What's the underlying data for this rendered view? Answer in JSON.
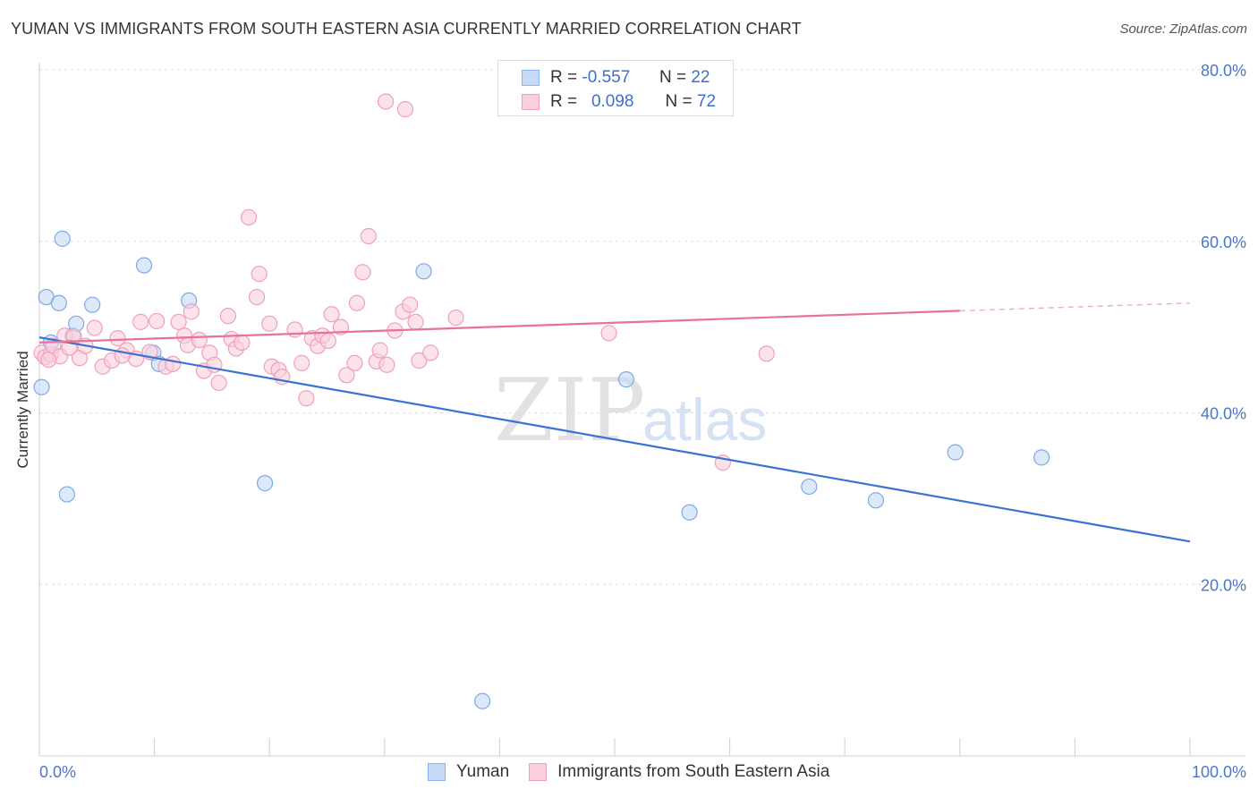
{
  "title": "YUMAN VS IMMIGRANTS FROM SOUTH EASTERN ASIA CURRENTLY MARRIED CORRELATION CHART",
  "source": "Source: ZipAtlas.com",
  "watermark": {
    "zip": "ZIP",
    "atlas": "atlas"
  },
  "legend": {
    "rows": [
      {
        "r_label": "R =",
        "r_value": "-0.557",
        "n_label": "N =",
        "n_value": "22",
        "color": "#8fb4ec",
        "fill": "#c5daf6"
      },
      {
        "r_label": "R =",
        "r_value": "0.098",
        "n_label": "N =",
        "n_value": "72",
        "color": "#f0a0b8",
        "fill": "#fad0dc"
      }
    ]
  },
  "chart_data": {
    "type": "scatter",
    "title": "YUMAN VS IMMIGRANTS FROM SOUTH EASTERN ASIA CURRENTLY MARRIED CORRELATION CHART",
    "ylabel": "Currently Married",
    "xlabel": "",
    "xlim": [
      0,
      100
    ],
    "ylim": [
      0,
      85
    ],
    "x_tick_labels": [
      "0.0%",
      "100.0%"
    ],
    "y_ticks": [
      20,
      40,
      60,
      80
    ],
    "y_tick_labels": [
      "20.0%",
      "40.0%",
      "60.0%",
      "80.0%"
    ],
    "grid": true,
    "legend_position": "top-center",
    "series": [
      {
        "name": "Yuman",
        "color": "#3a72d4",
        "marker_fill": "#c5daf6",
        "marker_stroke": "#7fa8e6",
        "points": [
          [
            0.2,
            43.0
          ],
          [
            0.6,
            53.5
          ],
          [
            1.7,
            52.8
          ],
          [
            2.0,
            60.3
          ],
          [
            2.4,
            30.5
          ],
          [
            2.9,
            49.0
          ],
          [
            3.2,
            50.4
          ],
          [
            4.6,
            52.6
          ],
          [
            9.1,
            57.2
          ],
          [
            9.9,
            47.0
          ],
          [
            10.4,
            45.7
          ],
          [
            13.0,
            53.1
          ],
          [
            19.6,
            31.8
          ],
          [
            33.4,
            56.5
          ],
          [
            38.5,
            6.4
          ],
          [
            51.0,
            43.9
          ],
          [
            56.5,
            28.4
          ],
          [
            66.9,
            31.4
          ],
          [
            72.7,
            29.8
          ],
          [
            79.6,
            35.4
          ],
          [
            87.1,
            34.8
          ],
          [
            1.0,
            48.2
          ]
        ],
        "trend": {
          "x": [
            0,
            100
          ],
          "y": [
            48.8,
            25.0
          ]
        }
      },
      {
        "name": "Immigrants from South Eastern Asia",
        "color": "#e8729a",
        "marker_fill": "#fad0dc",
        "marker_stroke": "#f0a0b8",
        "points": [
          [
            0.2,
            47.0
          ],
          [
            0.5,
            46.5
          ],
          [
            1.0,
            46.8
          ],
          [
            1.2,
            47.8
          ],
          [
            1.8,
            46.6
          ],
          [
            2.2,
            49.0
          ],
          [
            3.0,
            48.9
          ],
          [
            3.5,
            46.4
          ],
          [
            4.0,
            47.8
          ],
          [
            4.8,
            49.9
          ],
          [
            5.5,
            45.4
          ],
          [
            6.3,
            46.1
          ],
          [
            6.8,
            48.7
          ],
          [
            7.6,
            47.3
          ],
          [
            8.4,
            46.3
          ],
          [
            8.8,
            50.6
          ],
          [
            9.6,
            47.1
          ],
          [
            10.2,
            50.7
          ],
          [
            11.0,
            45.4
          ],
          [
            11.6,
            45.7
          ],
          [
            12.1,
            50.6
          ],
          [
            12.6,
            49.0
          ],
          [
            12.9,
            47.9
          ],
          [
            13.2,
            51.8
          ],
          [
            13.9,
            48.5
          ],
          [
            14.3,
            44.9
          ],
          [
            14.8,
            47.0
          ],
          [
            15.2,
            45.6
          ],
          [
            15.6,
            43.5
          ],
          [
            16.4,
            51.3
          ],
          [
            16.7,
            48.6
          ],
          [
            17.1,
            47.5
          ],
          [
            17.6,
            48.2
          ],
          [
            18.2,
            62.8
          ],
          [
            18.9,
            53.5
          ],
          [
            19.1,
            56.2
          ],
          [
            20.0,
            50.4
          ],
          [
            20.2,
            45.4
          ],
          [
            20.8,
            45.0
          ],
          [
            21.1,
            44.2
          ],
          [
            22.2,
            49.7
          ],
          [
            22.8,
            45.8
          ],
          [
            23.2,
            41.7
          ],
          [
            23.7,
            48.7
          ],
          [
            24.2,
            47.8
          ],
          [
            24.6,
            49.0
          ],
          [
            25.1,
            48.4
          ],
          [
            25.4,
            51.5
          ],
          [
            26.2,
            50.0
          ],
          [
            26.7,
            44.4
          ],
          [
            27.4,
            45.8
          ],
          [
            27.6,
            52.8
          ],
          [
            28.1,
            56.4
          ],
          [
            28.6,
            60.6
          ],
          [
            29.3,
            46.0
          ],
          [
            29.6,
            47.3
          ],
          [
            30.2,
            45.6
          ],
          [
            30.9,
            49.6
          ],
          [
            31.6,
            51.8
          ],
          [
            32.2,
            52.6
          ],
          [
            32.7,
            50.6
          ],
          [
            33.0,
            46.1
          ],
          [
            34.0,
            47.0
          ],
          [
            36.2,
            51.1
          ],
          [
            30.1,
            76.3
          ],
          [
            31.8,
            75.4
          ],
          [
            49.5,
            49.3
          ],
          [
            63.2,
            46.9
          ],
          [
            59.4,
            34.2
          ],
          [
            0.8,
            46.2
          ],
          [
            2.6,
            47.6
          ],
          [
            7.2,
            46.7
          ]
        ],
        "trend": {
          "x": [
            0,
            80
          ],
          "y": [
            48.2,
            51.9
          ],
          "dashed_to": [
            100,
            52.8
          ]
        }
      }
    ]
  }
}
